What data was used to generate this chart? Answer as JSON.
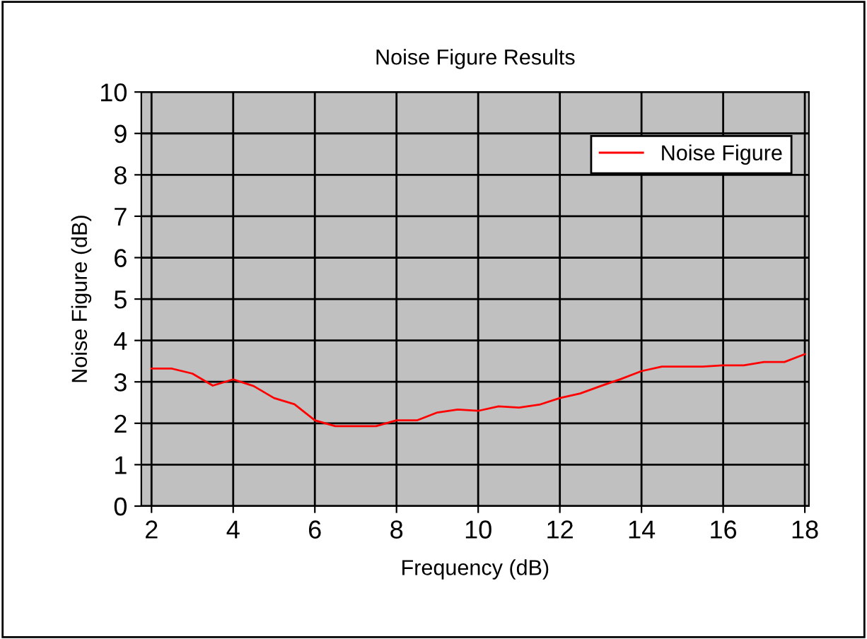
{
  "chart_data": {
    "type": "line",
    "title": "Noise Figure Results",
    "xlabel": "Frequency (dB)",
    "ylabel": "Noise Figure (dB)",
    "x": [
      2,
      2.5,
      3,
      3.5,
      4,
      4.5,
      5,
      5.5,
      6,
      6.5,
      7,
      7.5,
      8,
      8.5,
      9,
      9.5,
      10,
      10.5,
      11,
      11.5,
      12,
      12.5,
      13,
      13.5,
      14,
      14.5,
      15,
      15.5,
      16,
      16.5,
      17,
      17.5,
      18
    ],
    "series": [
      {
        "name": "Noise Figure",
        "color": "#ff0000",
        "values": [
          3.32,
          3.32,
          3.2,
          2.91,
          3.06,
          2.9,
          2.61,
          2.46,
          2.07,
          1.93,
          1.93,
          1.93,
          2.07,
          2.07,
          2.26,
          2.33,
          2.3,
          2.41,
          2.38,
          2.45,
          2.61,
          2.72,
          2.9,
          3.07,
          3.26,
          3.37,
          3.37,
          3.37,
          3.4,
          3.4,
          3.48,
          3.48,
          3.67
        ]
      }
    ],
    "xlim": [
      1.75,
      18.1
    ],
    "xticks": [
      2,
      4,
      6,
      8,
      10,
      12,
      14,
      16,
      18
    ],
    "ylim": [
      0,
      10
    ],
    "yticks": [
      0,
      1,
      2,
      3,
      4,
      5,
      6,
      7,
      8,
      9,
      10
    ],
    "grid": true,
    "legend": "top right",
    "marker": "none",
    "line_style": "solid"
  }
}
